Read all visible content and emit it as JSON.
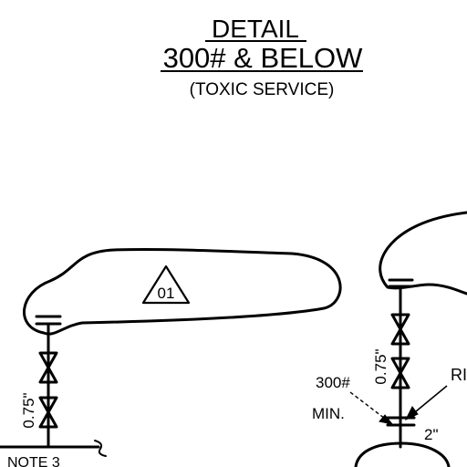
{
  "title": {
    "line1": "DETAIL",
    "line2": "300# & BELOW",
    "line3": "(TOXIC SERVICE)"
  },
  "left_detail": {
    "tag": "01",
    "dimension": "0.75\"",
    "note": "NOTE 3"
  },
  "right_detail": {
    "dimension": "0.75\"",
    "rating": "300#",
    "rating_sub": "MIN.",
    "size": "2\"",
    "callout_partial": "RI"
  }
}
